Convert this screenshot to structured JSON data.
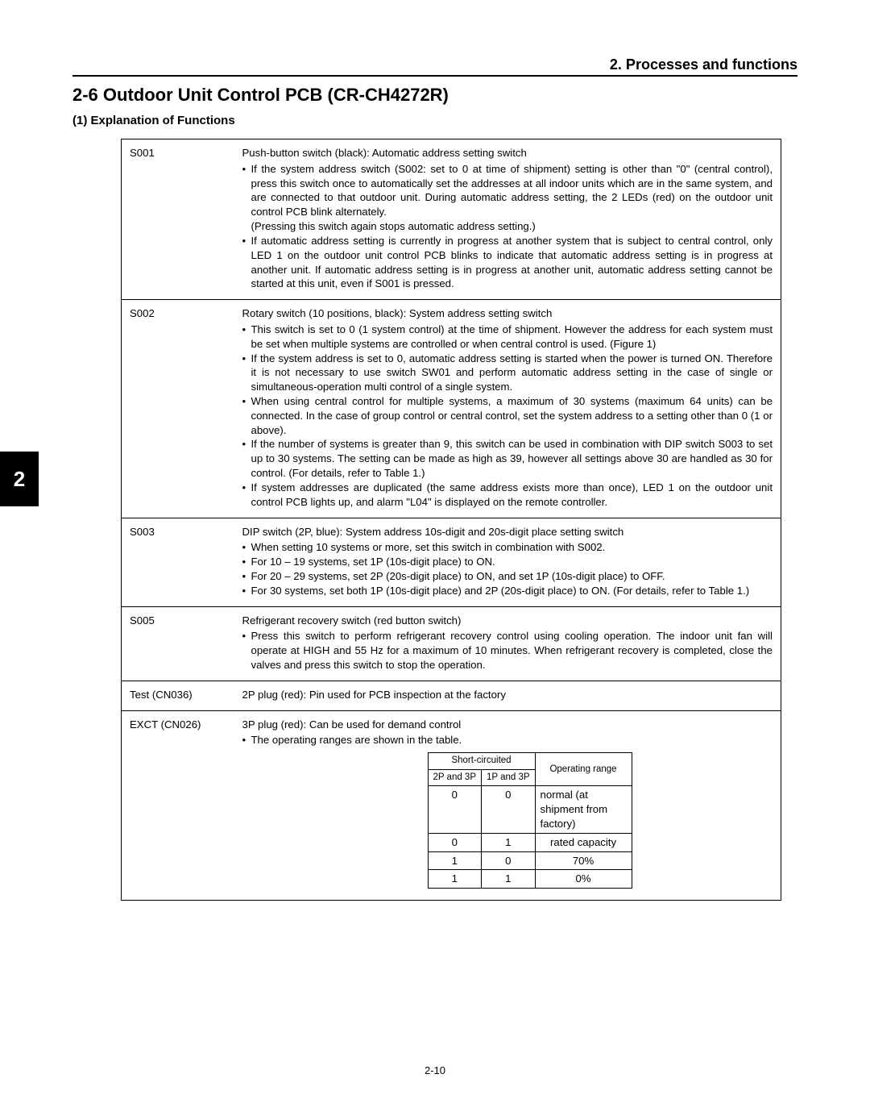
{
  "header": {
    "section_label": "2. Processes and functions",
    "main_heading": "2-6  Outdoor Unit Control PCB (CR-CH4272R)",
    "sub_heading": "(1) Explanation of Functions"
  },
  "side_tab": "2",
  "rows": [
    {
      "label": "S001",
      "title": "Push-button switch (black): Automatic address setting switch",
      "bullets": [
        "If the system address switch (S002: set to 0 at time of shipment) setting is other than \"0\" (central control), press this switch once to automatically set the addresses at all indoor units which are in the same system, and are connected to that outdoor unit. During automatic address setting, the 2 LEDs (red) on the outdoor unit control PCB blink alternately.\n(Pressing this switch again stops automatic address setting.)",
        "If automatic address setting is currently in progress at another system that is subject to central control, only LED 1 on the outdoor unit control PCB blinks to indicate that automatic address setting is in progress at another unit. If automatic address setting is in progress at another unit, automatic address setting cannot be started at this unit, even if S001 is pressed."
      ]
    },
    {
      "label": "S002",
      "title": "Rotary switch (10 positions, black): System address setting switch",
      "bullets": [
        "This switch is set to 0 (1 system control) at the time of shipment. However the address for each system must be set when multiple systems are controlled or when central control is used. (Figure 1)",
        "If the system address is set to 0, automatic address setting is started when the power is turned ON. Therefore it is not necessary to use switch SW01 and perform automatic address setting in the case of single or simultaneous-operation multi control of a single system.",
        "When using central control for multiple systems, a maximum of 30 systems (maximum 64 units) can be connected. In the case of group control or central control, set the system address to a setting other than 0 (1 or above).",
        "If the number of systems is greater than 9, this switch can be used in combination with DIP switch S003 to set up to 30 systems. The setting can be made as high as 39, however all settings above 30 are handled as 30 for control. (For details, refer to Table 1.)",
        "If system addresses are duplicated (the same address exists more than once), LED 1 on the outdoor unit control PCB lights up, and alarm \"L04\" is displayed on the remote controller."
      ]
    },
    {
      "label": "S003",
      "title": "DIP switch (2P, blue): System address 10s-digit and 20s-digit place setting switch",
      "bullets": [
        "When setting 10 systems or more, set this switch in combination with S002.",
        "For 10 – 19 systems, set 1P (10s-digit place) to ON.",
        "For 20 – 29 systems, set 2P (20s-digit place) to ON, and set 1P (10s-digit place) to OFF.",
        "For 30 systems, set both 1P (10s-digit place) and 2P (20s-digit place) to ON. (For details, refer to Table 1.)"
      ]
    },
    {
      "label": "S005",
      "title": "Refrigerant recovery switch (red button switch)",
      "bullets": [
        "Press this switch to perform refrigerant recovery control using cooling operation. The indoor unit fan will operate at HIGH and 55 Hz for a maximum of 10 minutes. When refrigerant recovery is completed, close the valves and press this switch to stop the operation."
      ]
    },
    {
      "label": "Test (CN036)",
      "title": "2P plug (red): Pin used for PCB inspection at the factory",
      "bullets": []
    },
    {
      "label": "EXCT (CN026)",
      "title": "3P plug (red): Can be used for demand control",
      "bullets": [
        "The operating ranges are shown in the table."
      ],
      "inner_table": {
        "header_group": "Short-circuited",
        "col_a": "2P and 3P",
        "col_b": "1P and 3P",
        "col_c": "Operating range",
        "rows": [
          {
            "a": "0",
            "b": "0",
            "c": "normal (at shipment from factory)"
          },
          {
            "a": "0",
            "b": "1",
            "c": "rated capacity"
          },
          {
            "a": "1",
            "b": "0",
            "c": "70%"
          },
          {
            "a": "1",
            "b": "1",
            "c": "0%"
          }
        ]
      }
    }
  ],
  "footer": "2-10"
}
